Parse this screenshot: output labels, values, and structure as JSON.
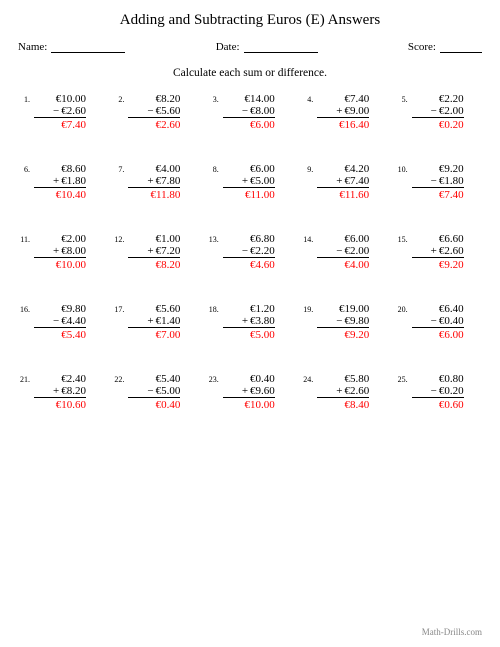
{
  "title": "Adding and Subtracting Euros (E) Answers",
  "labels": {
    "name": "Name:",
    "date": "Date:",
    "score": "Score:"
  },
  "instruction": "Calculate each sum or difference.",
  "footer": "Math-Drills.com",
  "answer_color": "#ff0000",
  "problems": [
    {
      "n": "1.",
      "a": "€10.00",
      "op": "−",
      "b": "€2.60",
      "ans": "€7.40"
    },
    {
      "n": "2.",
      "a": "€8.20",
      "op": "−",
      "b": "€5.60",
      "ans": "€2.60"
    },
    {
      "n": "3.",
      "a": "€14.00",
      "op": "−",
      "b": "€8.00",
      "ans": "€6.00"
    },
    {
      "n": "4.",
      "a": "€7.40",
      "op": "+",
      "b": "€9.00",
      "ans": "€16.40"
    },
    {
      "n": "5.",
      "a": "€2.20",
      "op": "−",
      "b": "€2.00",
      "ans": "€0.20"
    },
    {
      "n": "6.",
      "a": "€8.60",
      "op": "+",
      "b": "€1.80",
      "ans": "€10.40"
    },
    {
      "n": "7.",
      "a": "€4.00",
      "op": "+",
      "b": "€7.80",
      "ans": "€11.80"
    },
    {
      "n": "8.",
      "a": "€6.00",
      "op": "+",
      "b": "€5.00",
      "ans": "€11.00"
    },
    {
      "n": "9.",
      "a": "€4.20",
      "op": "+",
      "b": "€7.40",
      "ans": "€11.60"
    },
    {
      "n": "10.",
      "a": "€9.20",
      "op": "−",
      "b": "€1.80",
      "ans": "€7.40"
    },
    {
      "n": "11.",
      "a": "€2.00",
      "op": "+",
      "b": "€8.00",
      "ans": "€10.00"
    },
    {
      "n": "12.",
      "a": "€1.00",
      "op": "+",
      "b": "€7.20",
      "ans": "€8.20"
    },
    {
      "n": "13.",
      "a": "€6.80",
      "op": "−",
      "b": "€2.20",
      "ans": "€4.60"
    },
    {
      "n": "14.",
      "a": "€6.00",
      "op": "−",
      "b": "€2.00",
      "ans": "€4.00"
    },
    {
      "n": "15.",
      "a": "€6.60",
      "op": "+",
      "b": "€2.60",
      "ans": "€9.20"
    },
    {
      "n": "16.",
      "a": "€9.80",
      "op": "−",
      "b": "€4.40",
      "ans": "€5.40"
    },
    {
      "n": "17.",
      "a": "€5.60",
      "op": "+",
      "b": "€1.40",
      "ans": "€7.00"
    },
    {
      "n": "18.",
      "a": "€1.20",
      "op": "+",
      "b": "€3.80",
      "ans": "€5.00"
    },
    {
      "n": "19.",
      "a": "€19.00",
      "op": "−",
      "b": "€9.80",
      "ans": "€9.20"
    },
    {
      "n": "20.",
      "a": "€6.40",
      "op": "−",
      "b": "€0.40",
      "ans": "€6.00"
    },
    {
      "n": "21.",
      "a": "€2.40",
      "op": "+",
      "b": "€8.20",
      "ans": "€10.60"
    },
    {
      "n": "22.",
      "a": "€5.40",
      "op": "−",
      "b": "€5.00",
      "ans": "€0.40"
    },
    {
      "n": "23.",
      "a": "€0.40",
      "op": "+",
      "b": "€9.60",
      "ans": "€10.00"
    },
    {
      "n": "24.",
      "a": "€5.80",
      "op": "+",
      "b": "€2.60",
      "ans": "€8.40"
    },
    {
      "n": "25.",
      "a": "€0.80",
      "op": "−",
      "b": "€0.20",
      "ans": "€0.60"
    }
  ]
}
